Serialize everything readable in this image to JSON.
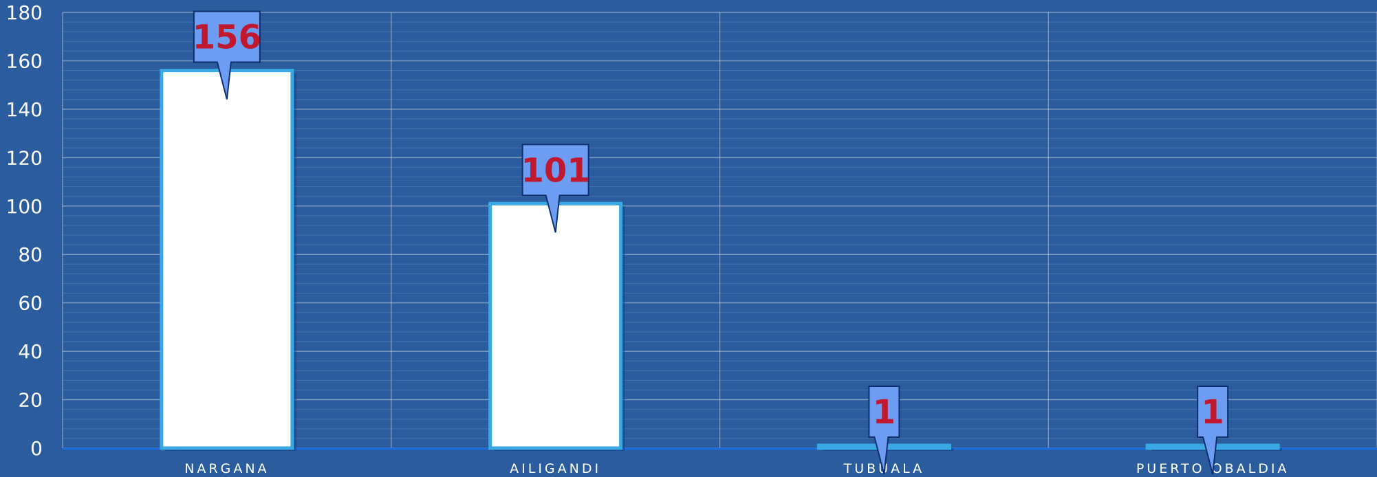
{
  "chart_data": {
    "type": "bar",
    "categories": [
      "NARGANA",
      "AILIGANDI",
      "TUBUALA",
      "PUERTO OBALDIA"
    ],
    "values": [
      156,
      101,
      1,
      1
    ],
    "data_labels": [
      "156",
      "101",
      "1",
      "1"
    ],
    "ylim": [
      0,
      180
    ],
    "yticks": [
      0,
      20,
      40,
      60,
      80,
      100,
      120,
      140,
      160,
      180
    ],
    "grid": true,
    "legend": "none",
    "colors": {
      "background": "#2b5d9e",
      "bar_fill": "#ffffff",
      "bar_stroke": "#3aa8e4",
      "callout_fill": "#6d9df2",
      "callout_stroke": "#0f2f6e",
      "label_text": "#c0182f",
      "axis_text": "#ffffff"
    }
  }
}
